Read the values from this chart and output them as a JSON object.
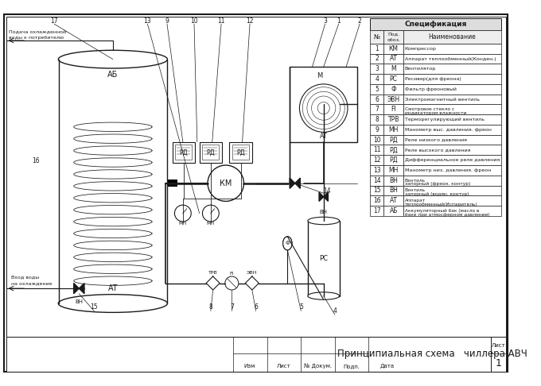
{
  "title": "Принципиальная схема   чиллера АВЧ",
  "sheet_label": "Лист",
  "sheet_number": "1",
  "stamp_labels": [
    "Изм",
    "Лист",
    "№ Докум.",
    "Подп.",
    "Дата"
  ],
  "spec_title": "Спецификация",
  "spec_rows": [
    [
      "1",
      "КМ",
      "Компрессор"
    ],
    [
      "2",
      "АТ",
      "Аппарат теплообменный(Конден.)"
    ],
    [
      "3",
      "М",
      "Вентилятор"
    ],
    [
      "4",
      "РС",
      "Ресивер(для фреона)"
    ],
    [
      "5",
      "Ф",
      "Фильтр фреоновый"
    ],
    [
      "6",
      "ЭВН",
      "Электромагнитный вентиль"
    ],
    [
      "7",
      "FI",
      "Смотровое стекло с индикатором влажности"
    ],
    [
      "8",
      "ТРВ",
      "Терморегулирующий вентиль"
    ],
    [
      "9",
      "МН",
      "Манометр выс. давления. фреон"
    ],
    [
      "10",
      "РД",
      "Реле низкого давления"
    ],
    [
      "11",
      "РД",
      "Реле высокого давления"
    ],
    [
      "12",
      "РД",
      "Дифференциальное реле давления"
    ],
    [
      "13",
      "МН",
      "Манометр низ. давления. фреон"
    ],
    [
      "14",
      "ВН",
      "Вентиль запорный (фреон. контур)"
    ],
    [
      "15",
      "ВН",
      "Вентиль запорный (водян. контур)"
    ],
    [
      "16",
      "АТ",
      "Аппарат теплообменный(Испаритель)"
    ],
    [
      "17",
      "АБ",
      "Аккумуляторный бак (масло в баке при атмосферном давлении)"
    ]
  ],
  "lc": "#1a1a1a"
}
